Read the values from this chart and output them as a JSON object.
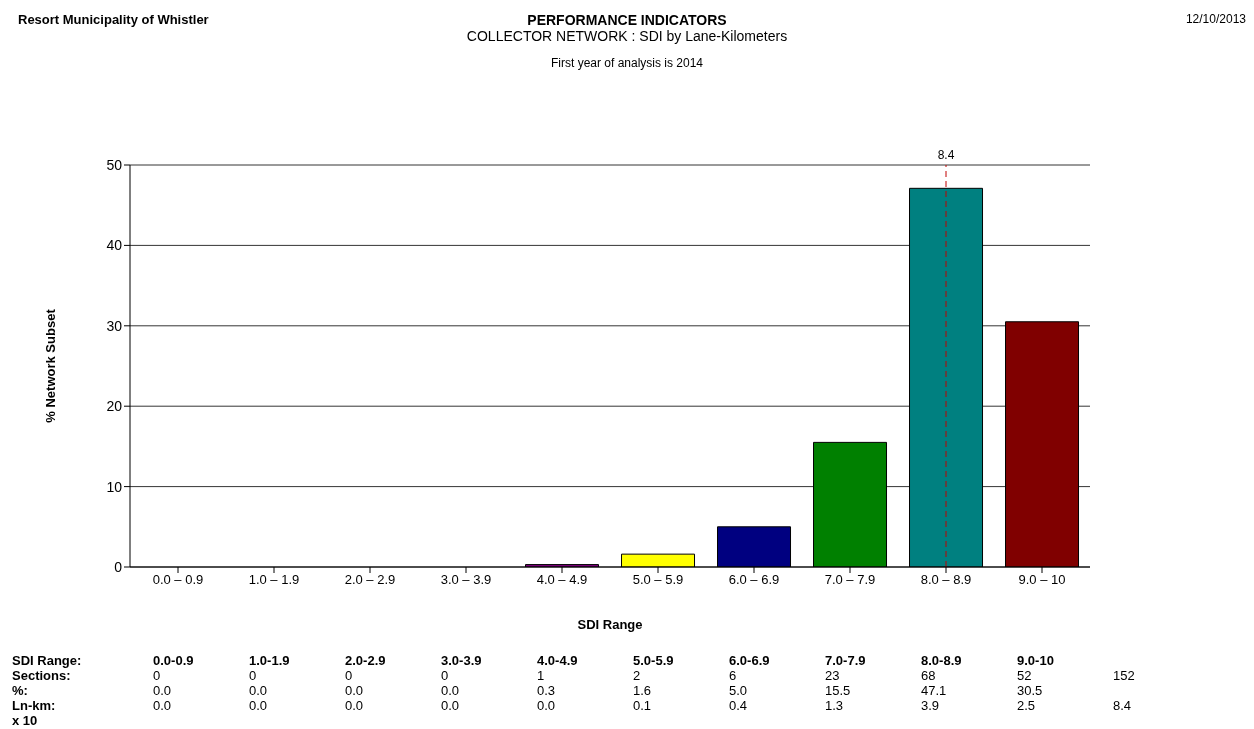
{
  "chart_data": {
    "type": "bar",
    "title": "PERFORMANCE INDICATORS",
    "subtitle": "COLLECTOR NETWORK : SDI by Lane-Kilometers",
    "xlabel": "SDI Range",
    "ylabel": "% Network Subset",
    "categories": [
      "0.0 – 0.9",
      "1.0 – 1.9",
      "2.0 – 2.9",
      "3.0 – 3.9",
      "4.0 – 4.9",
      "5.0 – 5.9",
      "6.0 – 6.9",
      "7.0 – 7.9",
      "8.0 – 8.9",
      "9.0 – 10"
    ],
    "values": [
      0,
      0,
      0,
      0,
      0.3,
      1.6,
      5.0,
      15.5,
      47.1,
      30.5
    ],
    "colors": [
      "#000080",
      "#008000",
      "#008080",
      "#800000",
      "#800080",
      "#ffff00",
      "#000080",
      "#008000",
      "#008080",
      "#800000"
    ],
    "value_labels": [
      "0.0",
      "0.0",
      "0.0",
      "0.0",
      "0.3",
      "1.6",
      "5.0",
      "15.5",
      "47.1",
      "30.5"
    ],
    "ylim": [
      0,
      50
    ],
    "yticks": [
      0,
      10,
      20,
      30,
      40,
      50
    ],
    "grid": "y",
    "annotations": [
      "Resort Municipality of Whistler",
      "12/10/2013",
      "First year of analysis is 2014",
      {
        "text": "8.4",
        "x": "8.0 – 8.9"
      },
      "SDI Range:",
      "0.0-0.9",
      "1.0-1.9",
      "2.0-2.9",
      "3.0-3.9",
      "4.0-4.9",
      "5.0-5.9",
      "6.0-6.9",
      "7.0-7.9",
      "8.0-8.9",
      "9.0-10",
      "Sections:",
      "0",
      "0",
      "0",
      "0",
      "1",
      "2",
      "6",
      "23",
      "68",
      "52",
      "152",
      "%:",
      "Ln-km:",
      "0.0",
      "0.0",
      "0.0",
      "0.0",
      "0.0",
      "0.1",
      "0.4",
      "1.3",
      "3.9",
      "2.5",
      "8.4",
      "x 10"
    ]
  }
}
